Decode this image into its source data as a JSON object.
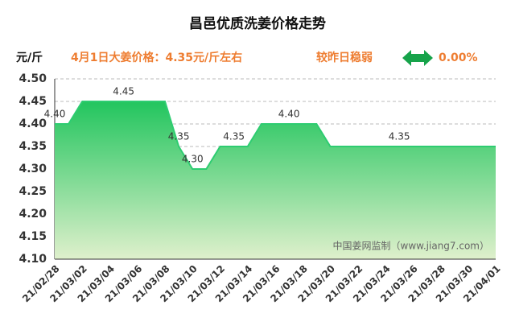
{
  "chart_data": {
    "type": "area",
    "title": "昌邑优质洗姜价格走势",
    "unit_label": "元/斤",
    "price_note": "4月1日大姜价格：4.35元/斤左右",
    "trend_note": "较昨日稳弱",
    "change_note": "0.00%",
    "watermark": "中国姜网监制（www.jiang7.com）",
    "categories": [
      "21/02/28",
      null,
      "21/03/02",
      null,
      "21/03/04",
      null,
      "21/03/06",
      null,
      "21/03/08",
      null,
      "21/03/10",
      null,
      "21/03/12",
      null,
      "21/03/14",
      null,
      "21/03/16",
      null,
      "21/03/18",
      null,
      "21/03/20",
      null,
      "21/03/22",
      null,
      "21/03/24",
      null,
      "21/03/26",
      null,
      "21/03/28",
      null,
      "21/03/30",
      null,
      "21/04/01"
    ],
    "values": [
      4.4,
      4.4,
      4.45,
      4.45,
      4.45,
      4.45,
      4.45,
      4.45,
      4.45,
      4.35,
      4.3,
      4.3,
      4.35,
      4.35,
      4.35,
      4.4,
      4.4,
      4.4,
      4.4,
      4.4,
      4.35,
      4.35,
      4.35,
      4.35,
      4.35,
      4.35,
      4.35,
      4.35,
      4.35,
      4.35,
      4.35,
      4.35,
      4.35
    ],
    "value_labels": [
      "4.40",
      null,
      null,
      null,
      null,
      "4.45",
      null,
      null,
      null,
      "4.35",
      "4.30",
      null,
      null,
      "4.35",
      null,
      null,
      null,
      "4.40",
      null,
      null,
      null,
      null,
      null,
      null,
      null,
      "4.35",
      null,
      null,
      null,
      null,
      null,
      null,
      null
    ],
    "color": "#2ecc71",
    "ylim": [
      4.1,
      4.5
    ],
    "yticks": [
      {
        "value": 4.1,
        "label": "4.10"
      },
      {
        "value": 4.15,
        "label": "4.15"
      },
      {
        "value": 4.2,
        "label": "4.20"
      },
      {
        "value": 4.25,
        "label": "4.25"
      },
      {
        "value": 4.3,
        "label": "4.30"
      },
      {
        "value": 4.35,
        "label": "4.35"
      },
      {
        "value": 4.4,
        "label": "4.40"
      },
      {
        "value": 4.45,
        "label": "4.45"
      },
      {
        "value": 4.5,
        "label": "4.50"
      }
    ],
    "grid": true
  }
}
